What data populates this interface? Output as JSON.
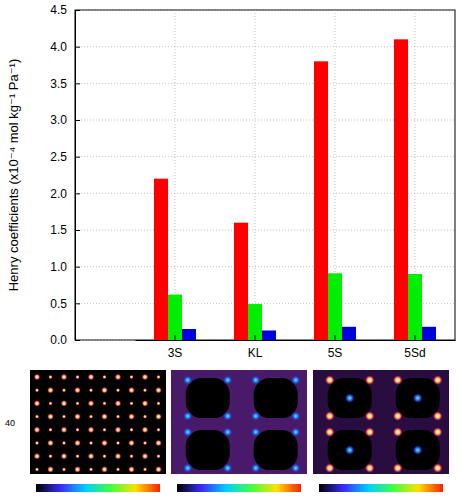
{
  "chart_data": [
    {
      "type": "bar",
      "ylabel": "Henry coefficients (x10⁻⁴ mol kg⁻¹ Pa⁻¹)",
      "categories": [
        "3S",
        "KL",
        "5S",
        "5Sd"
      ],
      "series": [
        {
          "color": "#ff0000",
          "values": [
            2.2,
            1.6,
            3.8,
            4.1
          ]
        },
        {
          "color": "#00ee00",
          "values": [
            0.62,
            0.49,
            0.91,
            0.9
          ]
        },
        {
          "color": "#0000dd",
          "values": [
            0.15,
            0.13,
            0.18,
            0.18
          ]
        }
      ],
      "ylim": [
        0,
        4.5
      ],
      "yticks": [
        {
          "value": 0,
          "label": "0.0"
        },
        {
          "value": 0.5,
          "label": "0.5"
        },
        {
          "value": 1,
          "label": "1.0"
        },
        {
          "value": 1.5,
          "label": "1.5"
        },
        {
          "value": 2,
          "label": "2.0"
        },
        {
          "value": 2.5,
          "label": "2.5"
        },
        {
          "value": 3,
          "label": "3.0"
        },
        {
          "value": 3.5,
          "label": "3.5"
        },
        {
          "value": 4,
          "label": "4.0"
        },
        {
          "value": 4.5,
          "label": "4.5"
        }
      ],
      "grid": true
    },
    {
      "type": "heatmap",
      "ylabel": "40"
    }
  ]
}
